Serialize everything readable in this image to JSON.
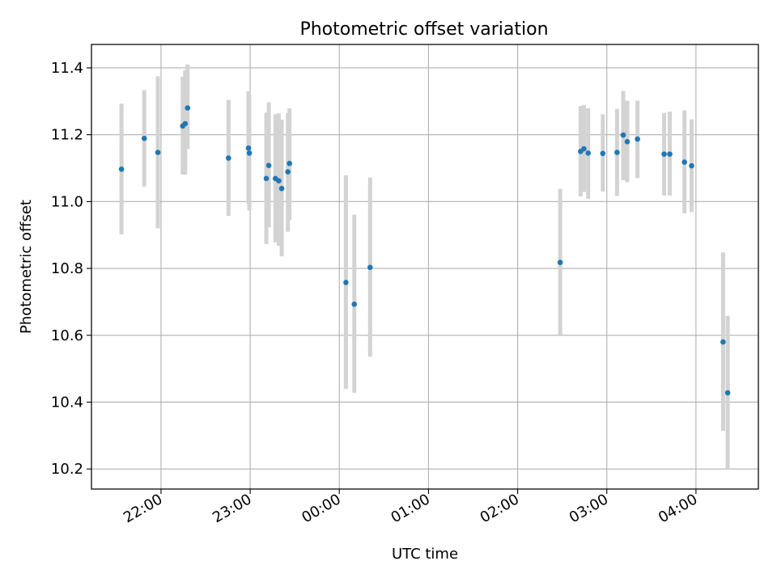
{
  "chart_data": {
    "type": "scatter",
    "title": "Photometric offset variation",
    "xlabel": "UTC time",
    "ylabel": "Photometric offset",
    "grid": true,
    "xlim_hours": [
      -2.78,
      4.7
    ],
    "ylim": [
      10.14,
      11.47
    ],
    "x_ticks": [
      {
        "label": "22:00",
        "value": -2.0
      },
      {
        "label": "23:00",
        "value": -1.0
      },
      {
        "label": "00:00",
        "value": 0.0
      },
      {
        "label": "01:00",
        "value": 1.0
      },
      {
        "label": "02:00",
        "value": 2.0
      },
      {
        "label": "03:00",
        "value": 3.0
      },
      {
        "label": "04:00",
        "value": 4.0
      }
    ],
    "y_ticks": [
      {
        "label": "10.2",
        "value": 10.2
      },
      {
        "label": "10.4",
        "value": 10.4
      },
      {
        "label": "10.6",
        "value": 10.6
      },
      {
        "label": "10.8",
        "value": 10.8
      },
      {
        "label": "11.0",
        "value": 11.0
      },
      {
        "label": "11.2",
        "value": 11.2
      },
      {
        "label": "11.4",
        "value": 11.4
      }
    ],
    "series": [
      {
        "name": "offset",
        "color": "#1f77b4",
        "errorbar_color": "#d3d3d3",
        "points": [
          {
            "x": -2.443,
            "y": 11.097,
            "lo": 10.902,
            "hi": 11.293
          },
          {
            "x": -2.188,
            "y": 11.189,
            "lo": 11.045,
            "hi": 11.333
          },
          {
            "x": -2.035,
            "y": 11.147,
            "lo": 10.92,
            "hi": 11.375
          },
          {
            "x": -1.757,
            "y": 11.226,
            "lo": 11.081,
            "hi": 11.374
          },
          {
            "x": -1.729,
            "y": 11.233,
            "lo": 11.08,
            "hi": 11.393
          },
          {
            "x": -1.702,
            "y": 11.28,
            "lo": 11.157,
            "hi": 11.41
          },
          {
            "x": -1.243,
            "y": 11.13,
            "lo": 10.957,
            "hi": 11.304
          },
          {
            "x": -1.019,
            "y": 11.16,
            "lo": 10.993,
            "hi": 11.33
          },
          {
            "x": -1.009,
            "y": 11.145,
            "lo": 10.973,
            "hi": 11.318
          },
          {
            "x": -0.819,
            "y": 11.069,
            "lo": 10.873,
            "hi": 11.266
          },
          {
            "x": -0.791,
            "y": 11.108,
            "lo": 10.923,
            "hi": 11.297
          },
          {
            "x": -0.717,
            "y": 11.069,
            "lo": 10.878,
            "hi": 11.261
          },
          {
            "x": -0.679,
            "y": 11.062,
            "lo": 10.868,
            "hi": 11.264
          },
          {
            "x": -0.646,
            "y": 11.039,
            "lo": 10.836,
            "hi": 11.245
          },
          {
            "x": -0.577,
            "y": 11.089,
            "lo": 10.91,
            "hi": 11.265
          },
          {
            "x": -0.559,
            "y": 11.114,
            "lo": 10.944,
            "hi": 11.279
          },
          {
            "x": 0.074,
            "y": 10.758,
            "lo": 10.44,
            "hi": 11.079
          },
          {
            "x": 0.168,
            "y": 10.693,
            "lo": 10.428,
            "hi": 10.961
          },
          {
            "x": 0.345,
            "y": 10.803,
            "lo": 10.536,
            "hi": 11.072
          },
          {
            "x": 2.477,
            "y": 10.818,
            "lo": 10.601,
            "hi": 11.038
          },
          {
            "x": 2.706,
            "y": 11.15,
            "lo": 11.015,
            "hi": 11.286
          },
          {
            "x": 2.743,
            "y": 11.158,
            "lo": 11.029,
            "hi": 11.289
          },
          {
            "x": 2.791,
            "y": 11.145,
            "lo": 11.008,
            "hi": 11.279
          },
          {
            "x": 2.955,
            "y": 11.144,
            "lo": 11.03,
            "hi": 11.261
          },
          {
            "x": 3.115,
            "y": 11.147,
            "lo": 11.017,
            "hi": 11.277
          },
          {
            "x": 3.184,
            "y": 11.199,
            "lo": 11.064,
            "hi": 11.331
          },
          {
            "x": 3.229,
            "y": 11.179,
            "lo": 11.058,
            "hi": 11.302
          },
          {
            "x": 3.344,
            "y": 11.187,
            "lo": 11.07,
            "hi": 11.302
          },
          {
            "x": 3.643,
            "y": 11.142,
            "lo": 11.018,
            "hi": 11.265
          },
          {
            "x": 3.706,
            "y": 11.142,
            "lo": 11.018,
            "hi": 11.269
          },
          {
            "x": 3.871,
            "y": 11.118,
            "lo": 10.965,
            "hi": 11.273
          },
          {
            "x": 3.951,
            "y": 11.107,
            "lo": 10.968,
            "hi": 11.246
          },
          {
            "x": 4.304,
            "y": 10.58,
            "lo": 10.314,
            "hi": 10.848
          },
          {
            "x": 4.356,
            "y": 10.428,
            "lo": 10.2,
            "hi": 10.658
          }
        ]
      }
    ]
  }
}
